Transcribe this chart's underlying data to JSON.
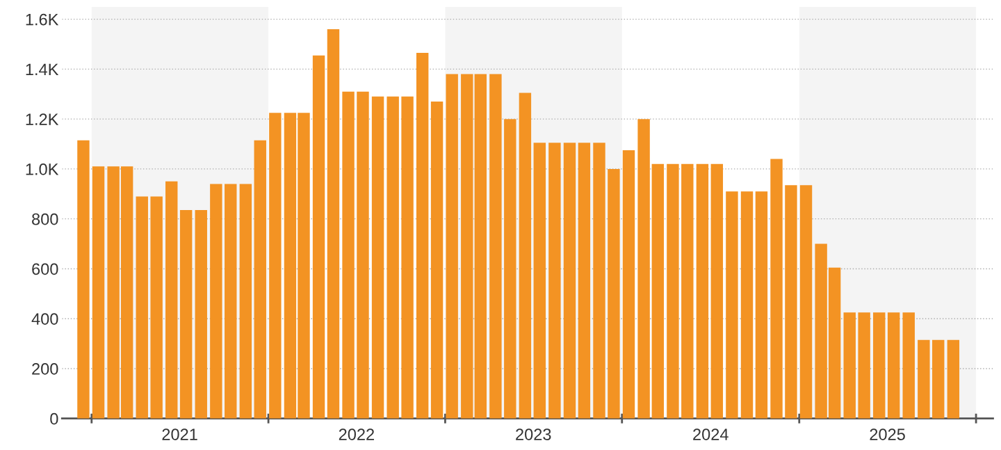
{
  "chart_data": {
    "type": "bar",
    "color": "#f39323",
    "x": [
      "2020-12-15",
      "2021-01-15",
      "2021-02-15",
      "2021-03-15",
      "2021-04-15",
      "2021-05-15",
      "2021-06-15",
      "2021-07-15",
      "2021-08-15",
      "2021-09-15",
      "2021-10-15",
      "2021-11-15",
      "2021-12-15",
      "2022-01-15",
      "2022-02-15",
      "2022-03-15",
      "2022-04-15",
      "2022-05-15",
      "2022-06-15",
      "2022-07-15",
      "2022-08-15",
      "2022-09-15",
      "2022-10-15",
      "2022-11-15",
      "2022-12-15",
      "2023-01-15",
      "2023-02-15",
      "2023-03-15",
      "2023-04-15",
      "2023-05-15",
      "2023-06-15",
      "2023-07-15",
      "2023-08-15",
      "2023-09-15",
      "2023-10-15",
      "2023-11-15",
      "2023-12-15",
      "2024-01-15",
      "2024-02-15",
      "2024-03-15",
      "2024-04-15",
      "2024-05-15",
      "2024-06-15",
      "2024-07-15",
      "2024-08-15",
      "2024-09-15",
      "2024-10-15",
      "2024-11-15",
      "2024-12-15",
      "2025-01-15",
      "2025-02-15",
      "2025-03-15",
      "2025-04-15",
      "2025-05-15",
      "2025-06-15",
      "2025-07-15",
      "2025-08-15",
      "2025-09-15",
      "2025-10-15",
      "2025-11-15"
    ],
    "values": [
      1115,
      1010,
      1010,
      1010,
      890,
      890,
      950,
      835,
      835,
      940,
      940,
      940,
      1115,
      1225,
      1225,
      1225,
      1455,
      1560,
      1310,
      1310,
      1290,
      1290,
      1290,
      1465,
      1270,
      1380,
      1380,
      1380,
      1380,
      1200,
      1305,
      1105,
      1105,
      1105,
      1105,
      1105,
      1000,
      1075,
      1200,
      1020,
      1020,
      1020,
      1020,
      1020,
      910,
      910,
      910,
      1040,
      935,
      935,
      700,
      605,
      425,
      425,
      425,
      425,
      425,
      315,
      315,
      315
    ],
    "xlim": [
      "2020-11-01",
      "2026-02-05"
    ],
    "xticks": [
      {
        "value": "2021-01-01",
        "label": null
      },
      {
        "value": "2022-01-01",
        "label": null
      },
      {
        "value": "2023-01-01",
        "label": null
      },
      {
        "value": "2024-01-01",
        "label": null
      },
      {
        "value": "2025-01-01",
        "label": null
      },
      {
        "value": "2026-01-01",
        "label": null
      },
      {
        "value": "2021-07-02",
        "label": "2021"
      },
      {
        "value": "2022-07-02",
        "label": "2022"
      },
      {
        "value": "2023-07-02",
        "label": "2023"
      },
      {
        "value": "2024-07-02",
        "label": "2024"
      },
      {
        "value": "2025-07-02",
        "label": "2025"
      }
    ],
    "ylim": [
      0,
      1650
    ],
    "yticks": [
      0,
      200,
      400,
      600,
      800,
      {
        "value": 1000,
        "label": "1.0K"
      },
      {
        "value": 1200,
        "label": "1.2K"
      },
      {
        "value": 1400,
        "label": "1.4K"
      },
      {
        "value": 1600,
        "label": "1.6K"
      }
    ],
    "grid": "y",
    "bands": [
      {
        "axis": "x",
        "from": "2021-01-01",
        "to": "2022-01-01",
        "color": "#f4f4f4"
      },
      {
        "axis": "x",
        "from": "2023-01-01",
        "to": "2024-01-01",
        "color": "#f4f4f4"
      },
      {
        "axis": "x",
        "from": "2025-01-01",
        "to": "2026-01-01",
        "color": "#f4f4f4"
      }
    ]
  }
}
